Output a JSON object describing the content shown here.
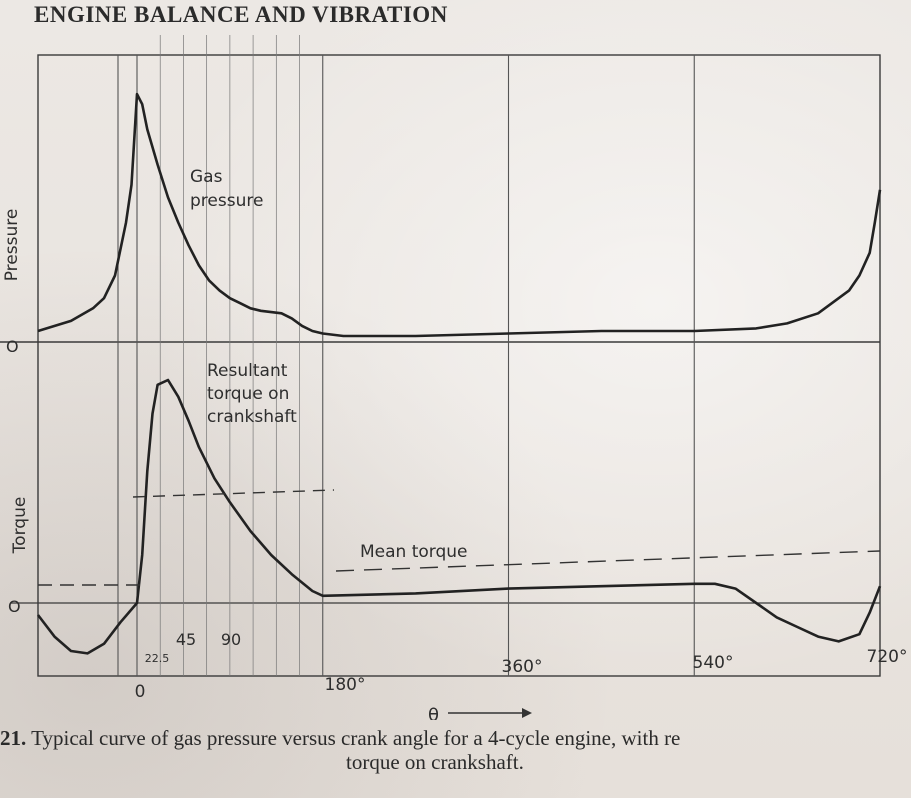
{
  "page": {
    "header": "ENGINE BALANCE AND VIBRATION",
    "caption_number": "21.",
    "caption_line1": " Typical curve of gas pressure versus crank angle for a 4-cycle engine, with re",
    "caption_line2": "torque on crankshaft."
  },
  "chart_data": [
    {
      "type": "line",
      "ylabel": "Pressure",
      "y_zero_label": "O",
      "x_unit": "deg",
      "xlim": [
        -90,
        720
      ],
      "ylim": [
        0,
        1
      ],
      "series": [
        {
          "name": "Gas pressure",
          "x": [
            -90,
            -60,
            -40,
            -30,
            -20,
            -10,
            -5,
            0,
            5,
            10,
            20,
            30,
            40,
            50,
            60,
            70,
            80,
            90,
            100,
            110,
            120,
            140,
            150,
            160,
            170,
            180,
            200,
            270,
            360,
            450,
            540,
            600,
            630,
            660,
            690,
            700,
            710,
            715,
            720
          ],
          "y": [
            0.02,
            0.06,
            0.11,
            0.15,
            0.24,
            0.45,
            0.6,
            0.96,
            0.92,
            0.82,
            0.68,
            0.55,
            0.45,
            0.36,
            0.28,
            0.22,
            0.18,
            0.15,
            0.13,
            0.11,
            0.1,
            0.09,
            0.07,
            0.04,
            0.02,
            0.01,
            0.0,
            0.0,
            0.01,
            0.02,
            0.02,
            0.03,
            0.05,
            0.09,
            0.18,
            0.24,
            0.33,
            0.45,
            0.58
          ]
        }
      ]
    },
    {
      "type": "line",
      "ylabel": "Torque",
      "y_zero_label": "O",
      "x_unit": "deg",
      "xlim": [
        -90,
        720
      ],
      "ylim": [
        -0.25,
        1.0
      ],
      "xticks": [
        {
          "value": 0,
          "label": "0"
        },
        {
          "value": 22.5,
          "label": "22.5"
        },
        {
          "value": 45,
          "label": "45"
        },
        {
          "value": 90,
          "label": "90"
        },
        {
          "value": 180,
          "label": "180°"
        },
        {
          "value": 360,
          "label": "360°"
        },
        {
          "value": 540,
          "label": "540°"
        },
        {
          "value": 720,
          "label": "720°"
        }
      ],
      "xlabel": "θ",
      "mean_torque": 0.12,
      "series": [
        {
          "name": "Resultant torque on crankshaft",
          "x": [
            -90,
            -75,
            -60,
            -45,
            -30,
            -15,
            0,
            5,
            10,
            15,
            20,
            30,
            40,
            50,
            60,
            75,
            90,
            110,
            130,
            150,
            170,
            180,
            270,
            360,
            450,
            540,
            560,
            580,
            600,
            620,
            640,
            660,
            680,
            700,
            710,
            720
          ],
          "y": [
            -0.05,
            -0.14,
            -0.2,
            -0.21,
            -0.17,
            -0.08,
            0.0,
            0.2,
            0.55,
            0.79,
            0.91,
            0.93,
            0.86,
            0.76,
            0.65,
            0.52,
            0.42,
            0.3,
            0.2,
            0.12,
            0.05,
            0.03,
            0.04,
            0.06,
            0.07,
            0.08,
            0.08,
            0.06,
            0.0,
            -0.06,
            -0.1,
            -0.14,
            -0.16,
            -0.13,
            -0.04,
            0.07
          ]
        }
      ]
    }
  ],
  "labels": {
    "gas_pressure_1": "Gas",
    "gas_pressure_2": "pressure",
    "torque_1": "Resultant",
    "torque_2": "torque on",
    "torque_3": "crankshaft",
    "mean_torque": "Mean torque"
  }
}
